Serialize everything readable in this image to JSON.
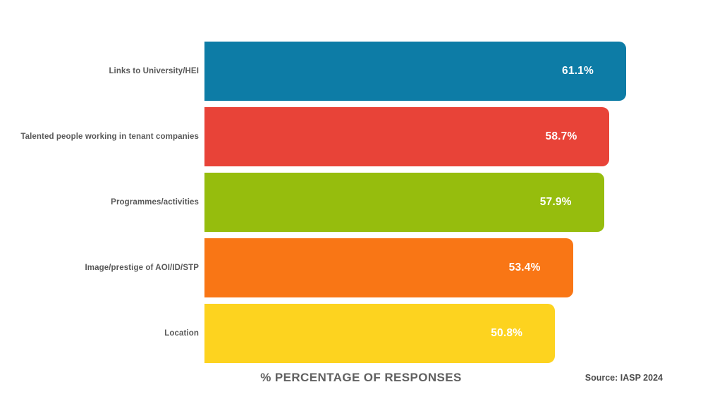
{
  "chart_data": {
    "type": "bar",
    "orientation": "horizontal",
    "title": "",
    "xlabel": "% PERCENTAGE OF RESPONSES",
    "ylabel": "",
    "categories": [
      "Links to University/HEI",
      "Talented people working in tenant companies",
      "Programmes/activities",
      "Image/prestige of AOI/ID/STP",
      "Location"
    ],
    "values": [
      61.1,
      58.7,
      57.9,
      53.4,
      50.8
    ],
    "value_labels": [
      "61.1%",
      "58.7%",
      "57.9%",
      "53.4%",
      "50.8%"
    ],
    "bar_colors": [
      "#0D7CA6",
      "#E84338",
      "#96BD0D",
      "#F97615",
      "#FDD31F"
    ],
    "xlim": [
      0,
      75
    ],
    "grid": false,
    "legend": false,
    "value_label_position": "inside-right",
    "source_note": "Source: IASP 2024"
  },
  "colors": {
    "category_text": "#595959",
    "value_text": "#FFFFFF",
    "axis_label_text": "#616161",
    "source_text": "#4D4D4D",
    "background": "#FFFFFF"
  }
}
